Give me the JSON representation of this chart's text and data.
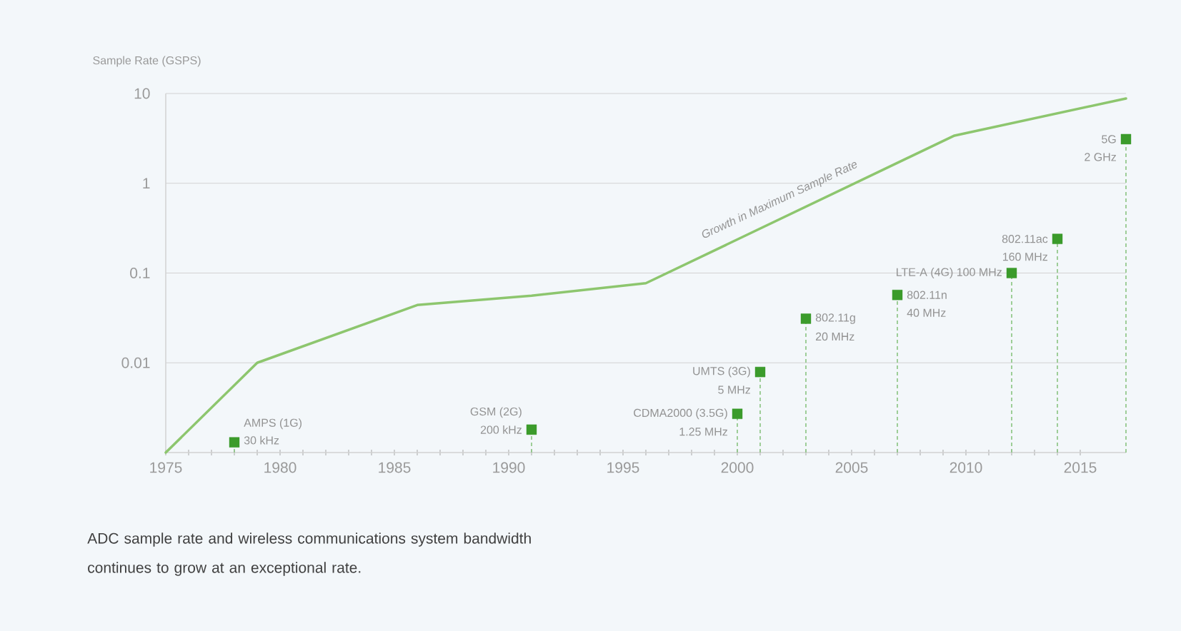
{
  "chart_data": {
    "type": "line",
    "ylabel": "Sample Rate (GSPS)",
    "xlim": [
      1975,
      2017
    ],
    "xticks": [
      1975,
      1980,
      1985,
      1990,
      1995,
      2000,
      2005,
      2010,
      2015
    ],
    "ylim": [
      0.001,
      10
    ],
    "yticks": [
      0.01,
      0.1,
      1,
      10
    ],
    "log": "y",
    "grid": "y",
    "series": [
      {
        "name": "Growth in Maximum Sample Rate",
        "color": "#8dc66e",
        "marker": "none",
        "line_style": "solid",
        "x": [
          1975,
          1979,
          1986,
          1991,
          1996,
          2009.5,
          2017
        ],
        "values": [
          0.001,
          0.01,
          0.044,
          0.056,
          0.077,
          3.4,
          8.8
        ]
      },
      {
        "type": "lollipop",
        "color": "#3b9b2b",
        "marker": "square",
        "line_style": "dashed",
        "x": [
          1978,
          1991,
          2000,
          2001,
          2003,
          2007,
          2012,
          2014,
          2017
        ],
        "values": [
          0.0013,
          0.0018,
          0.0027,
          0.0079,
          0.031,
          0.057,
          0.1,
          0.24,
          3.1
        ]
      }
    ],
    "annotations": [
      {
        "text": "AMPS (1G)",
        "x": 1978,
        "y": 0.0013
      },
      {
        "text": "30 kHz",
        "x": 1978,
        "y": 0.0013
      },
      {
        "text": "GSM (2G)",
        "x": 1991,
        "y": 0.0018
      },
      {
        "text": "200 kHz",
        "x": 1991,
        "y": 0.0018
      },
      {
        "text": "CDMA2000 (3.5G)",
        "x": 2000,
        "y": 0.0027
      },
      {
        "text": "1.25 MHz",
        "x": 2000,
        "y": 0.0027
      },
      {
        "text": "UMTS (3G)",
        "x": 2001,
        "y": 0.0079
      },
      {
        "text": "5 MHz",
        "x": 2001,
        "y": 0.0079
      },
      {
        "text": "802.11g",
        "x": 2003,
        "y": 0.031
      },
      {
        "text": "20 MHz",
        "x": 2003,
        "y": 0.031
      },
      {
        "text": "802.11n",
        "x": 2007,
        "y": 0.057
      },
      {
        "text": "40 MHz",
        "x": 2007,
        "y": 0.057
      },
      {
        "text": "LTE-A (4G) 100 MHz",
        "x": 2012,
        "y": 0.1
      },
      {
        "text": "802.11ac",
        "x": 2014,
        "y": 0.24
      },
      {
        "text": "160 MHz",
        "x": 2014,
        "y": 0.24
      },
      {
        "text": "5G",
        "x": 2017,
        "y": 3.1
      },
      {
        "text": "2 GHz",
        "x": 2017,
        "y": 3.1
      },
      "ADC sample rate and wireless communications system bandwidth continues to grow at an exceptional rate."
    ]
  }
}
